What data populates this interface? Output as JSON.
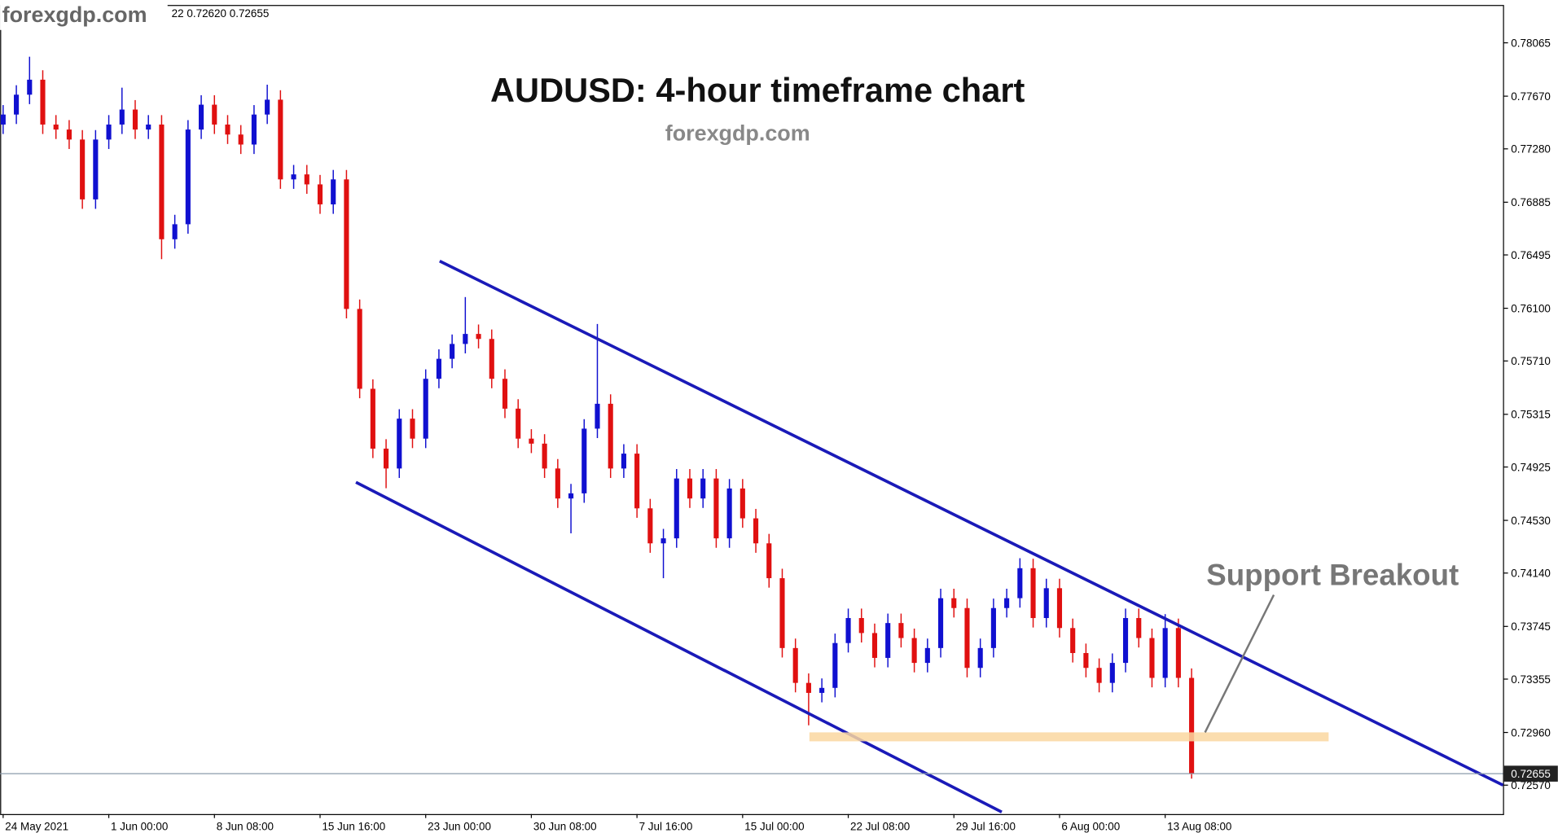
{
  "chart_data": {
    "type": "candlestick",
    "watermark": "forexgdp.com",
    "ohlc_header": "22 0.72620 0.72655",
    "title": "AUDUSD: 4-hour timeframe chart",
    "subtitle": "forexgdp.com",
    "annotation": "Support Breakout",
    "up_color": "#1010d0",
    "down_color": "#e01010",
    "channel_color": "#1a1ab8",
    "support_color": "#fad7a0",
    "last_price": 0.72655,
    "ylim": [
      0.72356,
      0.78345
    ],
    "yticks": [
      0.78065,
      {
        "value": 0.7767,
        "label": "0.77670"
      },
      {
        "value": 0.7728,
        "label": "0.77280"
      },
      0.76885,
      0.76495,
      {
        "value": 0.761,
        "label": "0.76100"
      },
      {
        "value": 0.7571,
        "label": "0.75710"
      },
      0.75315,
      0.74925,
      {
        "value": 0.7453,
        "label": "0.74530"
      },
      {
        "value": 0.7414,
        "label": "0.74140"
      },
      0.73745,
      0.73355,
      {
        "value": 0.7296,
        "label": "0.72960"
      },
      {
        "value": 0.7257,
        "label": "0.72570"
      }
    ],
    "categories": [
      "24 May 2021",
      null,
      null,
      null,
      null,
      null,
      null,
      null,
      "1 Jun 00:00",
      null,
      null,
      null,
      null,
      null,
      null,
      null,
      "8 Jun 08:00",
      null,
      null,
      null,
      null,
      null,
      null,
      null,
      "15 Jun 16:00",
      null,
      null,
      null,
      null,
      null,
      null,
      null,
      "23 Jun 00:00",
      null,
      null,
      null,
      null,
      null,
      null,
      null,
      "30 Jun 08:00",
      null,
      null,
      null,
      null,
      null,
      null,
      null,
      "7 Jul 16:00",
      null,
      null,
      null,
      null,
      null,
      null,
      null,
      "15 Jul 00:00",
      null,
      null,
      null,
      null,
      null,
      null,
      null,
      "22 Jul 08:00",
      null,
      null,
      null,
      null,
      null,
      null,
      null,
      "29 Jul 16:00",
      null,
      null,
      null,
      null,
      null,
      null,
      null,
      "6 Aug 00:00",
      null,
      null,
      null,
      null,
      null,
      null,
      null,
      "13 Aug 08:00",
      null,
      null
    ],
    "open": [
      0.7746,
      0.77534,
      0.77681,
      0.77792,
      0.7746,
      0.77423,
      0.77349,
      0.76906,
      0.77349,
      0.7746,
      0.77571,
      0.77423,
      0.7746,
      0.76611,
      0.76722,
      0.77423,
      0.77607,
      0.7746,
      0.77386,
      0.77312,
      0.77534,
      0.77644,
      0.77054,
      0.77091,
      0.77017,
      0.76869,
      0.77054,
      0.76095,
      0.75504,
      0.75061,
      0.74914,
      0.75283,
      0.75135,
      0.75578,
      0.75726,
      0.75836,
      0.7591,
      0.75873,
      0.75578,
      0.75357,
      0.75135,
      0.75098,
      0.74914,
      0.74692,
      0.7473,
      0.75209,
      0.75393,
      0.74914,
      0.75024,
      0.74619,
      0.7436,
      0.74397,
      0.7484,
      0.74692,
      0.7484,
      0.74397,
      0.74766,
      0.74545,
      0.7436,
      0.74102,
      0.73585,
      0.73327,
      0.73253,
      0.7329,
      0.73622,
      0.73807,
      0.73696,
      0.73512,
      0.7377,
      0.73659,
      0.73475,
      0.73585,
      0.73954,
      0.73881,
      0.73438,
      0.73585,
      0.73881,
      0.73954,
      0.74176,
      0.73807,
      0.74028,
      0.73733,
      0.73548,
      0.73438,
      0.73327,
      0.73475,
      0.73807,
      0.73659,
      0.73364,
      0.73733,
      0.73364
    ],
    "high": [
      0.77604,
      0.77751,
      0.77962,
      0.77862,
      0.7753,
      0.77493,
      0.77419,
      0.77419,
      0.7753,
      0.77733,
      0.77641,
      0.7753,
      0.7753,
      0.76792,
      0.77493,
      0.77677,
      0.77677,
      0.7753,
      0.77456,
      0.77604,
      0.77755,
      0.77714,
      0.77161,
      0.77161,
      0.77087,
      0.77124,
      0.77124,
      0.76165,
      0.75574,
      0.75131,
      0.75353,
      0.75353,
      0.75648,
      0.75796,
      0.75906,
      0.76183,
      0.7598,
      0.75943,
      0.75648,
      0.75427,
      0.75205,
      0.75168,
      0.74984,
      0.748,
      0.75279,
      0.75984,
      0.75463,
      0.75094,
      0.75094,
      0.74689,
      0.74467,
      0.7491,
      0.7491,
      0.7491,
      0.7491,
      0.74836,
      0.74836,
      0.74615,
      0.7443,
      0.74172,
      0.73655,
      0.73397,
      0.7336,
      0.73692,
      0.73877,
      0.73877,
      0.73766,
      0.7384,
      0.7384,
      0.73729,
      0.73655,
      0.74024,
      0.74024,
      0.73951,
      0.73655,
      0.73951,
      0.74024,
      0.7425,
      0.74246,
      0.74098,
      0.74098,
      0.73803,
      0.73618,
      0.73508,
      0.73545,
      0.73877,
      0.73877,
      0.73729,
      0.73836,
      0.73803,
      0.73434
    ],
    "low": [
      0.7739,
      0.77464,
      0.77611,
      0.7739,
      0.77353,
      0.77279,
      0.76836,
      0.76836,
      0.77279,
      0.7739,
      0.77353,
      0.77353,
      0.76464,
      0.76541,
      0.76652,
      0.77353,
      0.7739,
      0.77316,
      0.77242,
      0.77242,
      0.77464,
      0.76984,
      0.76984,
      0.76947,
      0.76799,
      0.76799,
      0.76025,
      0.75434,
      0.74991,
      0.74768,
      0.74844,
      0.75065,
      0.75065,
      0.75508,
      0.75656,
      0.75766,
      0.75803,
      0.75508,
      0.75287,
      0.75065,
      0.75028,
      0.74844,
      0.74622,
      0.74434,
      0.7466,
      0.75139,
      0.74844,
      0.74844,
      0.74549,
      0.7429,
      0.74102,
      0.74327,
      0.74622,
      0.74622,
      0.74327,
      0.74327,
      0.74475,
      0.7429,
      0.74032,
      0.73515,
      0.73257,
      0.73013,
      0.73183,
      0.7322,
      0.73552,
      0.73626,
      0.73442,
      0.73442,
      0.73589,
      0.73405,
      0.73405,
      0.73515,
      0.73811,
      0.73368,
      0.73368,
      0.73515,
      0.73811,
      0.73884,
      0.73737,
      0.73737,
      0.73663,
      0.73478,
      0.73368,
      0.73257,
      0.73257,
      0.73405,
      0.73589,
      0.73294,
      0.73294,
      0.73294,
      0.72618
    ],
    "close": [
      0.77534,
      0.77681,
      0.77792,
      0.7746,
      0.77423,
      0.77349,
      0.76906,
      0.77349,
      0.7746,
      0.77571,
      0.77423,
      0.7746,
      0.76611,
      0.76722,
      0.77423,
      0.77607,
      0.7746,
      0.77386,
      0.77312,
      0.77534,
      0.77644,
      0.77054,
      0.77091,
      0.77017,
      0.76869,
      0.77054,
      0.76095,
      0.75504,
      0.75061,
      0.74914,
      0.75283,
      0.75135,
      0.75578,
      0.75726,
      0.75836,
      0.7591,
      0.75873,
      0.75578,
      0.75357,
      0.75135,
      0.75098,
      0.74914,
      0.74692,
      0.7473,
      0.75209,
      0.75393,
      0.74914,
      0.75024,
      0.74619,
      0.7436,
      0.74397,
      0.7484,
      0.74692,
      0.7484,
      0.74397,
      0.74766,
      0.74545,
      0.7436,
      0.74102,
      0.73585,
      0.73327,
      0.73253,
      0.7329,
      0.73622,
      0.73807,
      0.73696,
      0.73512,
      0.7377,
      0.73659,
      0.73475,
      0.73585,
      0.73954,
      0.73881,
      0.73438,
      0.73585,
      0.73881,
      0.73954,
      0.74176,
      0.73807,
      0.74028,
      0.73733,
      0.73548,
      0.73438,
      0.73327,
      0.73475,
      0.73807,
      0.73659,
      0.73364,
      0.73733,
      0.73364,
      0.72655
    ]
  }
}
